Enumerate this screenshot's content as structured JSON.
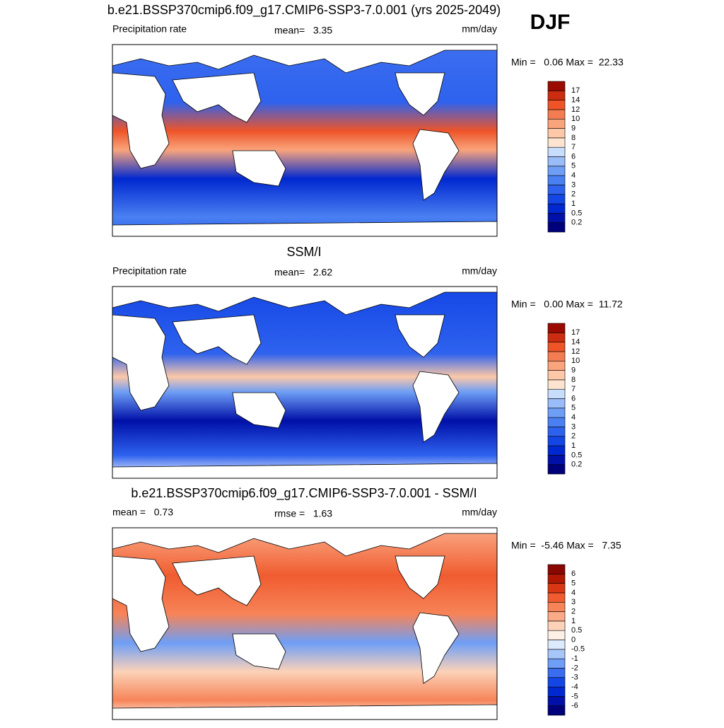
{
  "season": "DJF",
  "panels": [
    {
      "title": "b.e21.BSSP370cmip6.f09_g17.CMIP6-SSP3-7.0.001 (yrs 2025-2049)",
      "left_label": "Precipitation rate",
      "center_label": "mean=   3.35",
      "right_label": "mm/day",
      "minmax": "Min =   0.06 Max =  22.33",
      "colorbar": {
        "labels": [
          "0.2",
          "0.5",
          "1",
          "2",
          "3",
          "4",
          "5",
          "6",
          "7",
          "8",
          "9",
          "10",
          "12",
          "14",
          "17"
        ],
        "colors": [
          "#00007a",
          "#0010a8",
          "#0028d0",
          "#1446e6",
          "#2e62ee",
          "#4a80f2",
          "#6e9ef6",
          "#9abcf8",
          "#c8dcfb",
          "#fde4d0",
          "#fcc8a8",
          "#f9a47c",
          "#f47c52",
          "#ee5428",
          "#cc2c10",
          "#9a0a00"
        ]
      }
    },
    {
      "title": "SSM/I",
      "left_label": "Precipitation rate",
      "center_label": "mean=   2.62",
      "right_label": "mm/day",
      "minmax": "Min =   0.00 Max =  11.72",
      "colorbar": {
        "labels": [
          "0.2",
          "0.5",
          "1",
          "2",
          "3",
          "4",
          "5",
          "6",
          "7",
          "8",
          "9",
          "10",
          "12",
          "14",
          "17"
        ],
        "colors": [
          "#00007a",
          "#0010a8",
          "#0028d0",
          "#1446e6",
          "#2e62ee",
          "#4a80f2",
          "#6e9ef6",
          "#9abcf8",
          "#c8dcfb",
          "#fde4d0",
          "#fcc8a8",
          "#f9a47c",
          "#f47c52",
          "#ee5428",
          "#cc2c10",
          "#9a0a00"
        ]
      }
    },
    {
      "title": "b.e21.BSSP370cmip6.f09_g17.CMIP6-SSP3-7.0.001 - SSM/I",
      "left_label": "mean =   0.73",
      "center_label": "rmse =   1.63",
      "right_label": "mm/day",
      "minmax": "Min =  -5.46 Max =   7.35",
      "colorbar": {
        "labels": [
          "-6",
          "-5",
          "-4",
          "-3",
          "-2",
          "-1",
          "-0.5",
          "0",
          "0.5",
          "1",
          "2",
          "3",
          "4",
          "5",
          "6"
        ],
        "colors": [
          "#00007a",
          "#0010a8",
          "#0028d0",
          "#1446e6",
          "#3a6cf0",
          "#6e9ef6",
          "#a6c6fa",
          "#dceafd",
          "#fdf0e6",
          "#fcd2b8",
          "#faaa86",
          "#f68458",
          "#f05c30",
          "#d83614",
          "#b01804",
          "#8a0600"
        ]
      }
    }
  ]
}
